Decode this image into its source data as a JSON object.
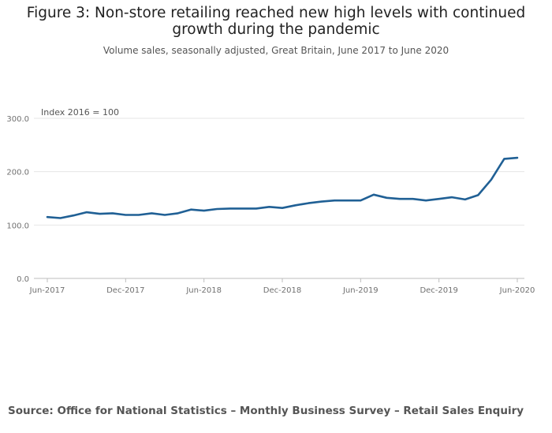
{
  "title": "Figure 3: Non-store retailing reached new high levels with continued growth during the pandemic",
  "title_lines": [
    "Figure 3: Non-store retailing reached new high levels with continued",
    "growth during the pandemic"
  ],
  "subtitle": "Volume sales, seasonally adjusted, Great Britain, June 2017 to June 2020",
  "source": "Source: Office for National Statistics – Monthly Business Survey – Retail Sales Enquiry",
  "colors": {
    "line": "#206095",
    "grid": "#e6e6e6",
    "axis": "#bebebe",
    "tick_text": "#707070"
  },
  "chart_data": {
    "type": "line",
    "ylabel": "Index 2016 = 100",
    "xlabel": "",
    "ylim": [
      0,
      300
    ],
    "yticks": [
      0,
      100,
      200,
      300
    ],
    "ytick_labels": [
      "0.0",
      "100.0",
      "200.0",
      "300.0"
    ],
    "xtick_labels": [
      "Jun-2017",
      "Dec-2017",
      "Jun-2018",
      "Dec-2018",
      "Jun-2019",
      "Dec-2019",
      "Jun-2020"
    ],
    "grid": true,
    "series": [
      {
        "values": [
          115,
          113,
          118,
          124,
          121,
          122,
          119,
          119,
          122,
          119,
          122,
          129,
          127,
          130,
          131,
          131,
          131,
          134,
          132,
          137,
          141,
          144,
          146,
          146,
          146,
          157,
          151,
          149,
          149,
          146,
          149,
          152,
          148,
          156,
          185,
          224,
          226
        ]
      }
    ]
  }
}
